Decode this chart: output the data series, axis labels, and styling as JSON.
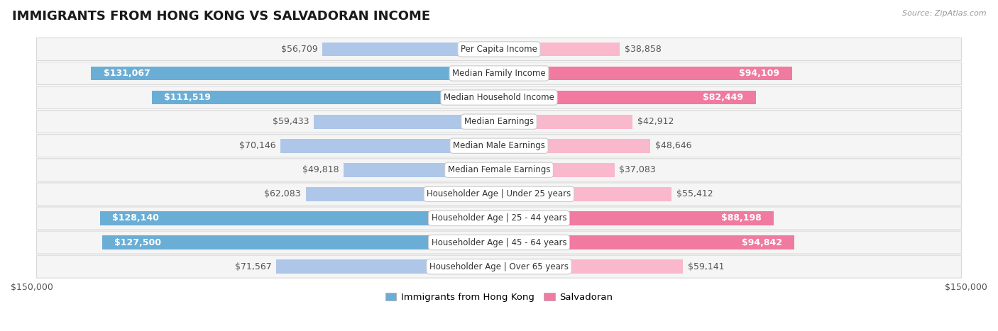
{
  "title": "IMMIGRANTS FROM HONG KONG VS SALVADORAN INCOME",
  "source": "Source: ZipAtlas.com",
  "categories": [
    "Per Capita Income",
    "Median Family Income",
    "Median Household Income",
    "Median Earnings",
    "Median Male Earnings",
    "Median Female Earnings",
    "Householder Age | Under 25 years",
    "Householder Age | 25 - 44 years",
    "Householder Age | 45 - 64 years",
    "Householder Age | Over 65 years"
  ],
  "hk_values": [
    56709,
    131067,
    111519,
    59433,
    70146,
    49818,
    62083,
    128140,
    127500,
    71567
  ],
  "sal_values": [
    38858,
    94109,
    82449,
    42912,
    48646,
    37083,
    55412,
    88198,
    94842,
    59141
  ],
  "hk_labels": [
    "$56,709",
    "$131,067",
    "$111,519",
    "$59,433",
    "$70,146",
    "$49,818",
    "$62,083",
    "$128,140",
    "$127,500",
    "$71,567"
  ],
  "sal_labels": [
    "$38,858",
    "$94,109",
    "$82,449",
    "$42,912",
    "$48,646",
    "$37,083",
    "$55,412",
    "$88,198",
    "$94,842",
    "$59,141"
  ],
  "max_value": 150000,
  "hk_color_light": "#aec6e8",
  "hk_color_dark": "#6aaed6",
  "sal_color_light": "#f9b8cc",
  "sal_color_dark": "#f07aa0",
  "row_bg_color": "#f5f5f5",
  "row_border_color": "#d8d8d8",
  "label_outside_color": "#555555",
  "label_inside_color": "#ffffff",
  "center_label_bg": "#ffffff",
  "center_label_border": "#cccccc",
  "title_fontsize": 13,
  "label_fontsize": 9,
  "category_fontsize": 8.5,
  "axis_fontsize": 9,
  "legend_fontsize": 9.5,
  "bar_height": 0.58,
  "hk_dark_threshold": 100000,
  "sal_dark_threshold": 80000,
  "x_axis_label_left": "$150,000",
  "x_axis_label_right": "$150,000"
}
